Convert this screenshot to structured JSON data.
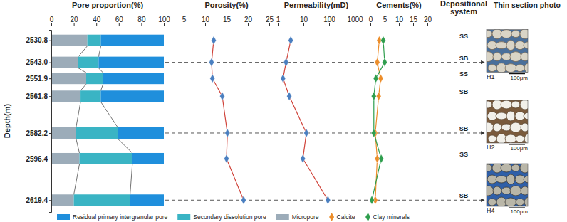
{
  "chart_data": [
    {
      "type": "bar",
      "orientation": "horizontal",
      "stacked": true,
      "title": "Pore proportion(%)",
      "ylabel": "Depth(m)",
      "y": [
        2530.8,
        2543.0,
        2551.9,
        2561.8,
        2582.2,
        2596.4,
        2619.4
      ],
      "ylim": [
        2525,
        2626
      ],
      "yticks": [
        2530.8,
        {
          "value": 2543.0,
          "label": "2543.0"
        },
        2551.9,
        2561.8,
        2582.2,
        2596.4,
        2619.4
      ],
      "xlim": [
        0,
        100
      ],
      "xticks": [
        0,
        20,
        40,
        60,
        80,
        100
      ],
      "legend": "bottom",
      "series": [
        {
          "name": "Residual primary intergranular pore",
          "color": "#1f8fdc",
          "values": [
            56,
            58,
            54,
            56,
            41,
            28,
            30
          ]
        },
        {
          "name": "Secondary dissolution pore",
          "color": "#3ab4c4",
          "values": [
            12,
            18,
            15,
            18,
            37,
            47,
            50
          ]
        },
        {
          "name": "Micropore",
          "color": "#9cacb9",
          "values": [
            32,
            24,
            31,
            26,
            22,
            25,
            20
          ]
        }
      ]
    },
    {
      "type": "line",
      "title": "Porosity(%)",
      "y": [
        2530.8,
        2543.0,
        2551.9,
        2561.8,
        2582.2,
        2596.4,
        2619.4
      ],
      "values": [
        12,
        11.5,
        11.7,
        14,
        15.2,
        15,
        19
      ],
      "xlim": [
        5,
        25
      ],
      "xticks": [
        5,
        10,
        15,
        20,
        25
      ],
      "color": "#d0433a",
      "marker": "diamond",
      "tick_labels": "x"
    },
    {
      "type": "line",
      "title": "Permeability(mD)",
      "log": "x",
      "y": [
        2530.8,
        2543.0,
        2551.9,
        2561.8,
        2582.2,
        2596.4,
        2619.4
      ],
      "values": [
        3.2,
        2.1,
        1.6,
        2.8,
        13,
        9.5,
        90
      ],
      "xlim": [
        1,
        1000
      ],
      "xticks": [
        1,
        10,
        100,
        1000
      ],
      "color": "#d0433a",
      "marker": "diamond",
      "tick_labels": "x"
    },
    {
      "type": "line",
      "title": "Cements(%)",
      "y": [
        2530.8,
        2543.0,
        2551.9,
        2561.8,
        2582.2,
        2596.4,
        2619.4
      ],
      "xlim": [
        0,
        20
      ],
      "xticks": [
        0,
        5,
        10,
        15,
        20
      ],
      "tick_labels": "x",
      "legend": "bottom",
      "series": [
        {
          "name": "Calcite",
          "color": "#ec8d2a",
          "marker": "diamond",
          "values": [
            3.1,
            2.4,
            3.6,
            2.9,
            1.7,
            2.4,
            1.7
          ]
        },
        {
          "name": "Clay minerals",
          "color": "#2f9e4e",
          "marker": "diamond",
          "values": [
            4.5,
            5.0,
            1.9,
            1.2,
            1.2,
            3.8,
            0.5
          ]
        }
      ]
    }
  ],
  "depositional_system": {
    "title": "Depositional system",
    "y": [
      2530.8,
      2543.0,
      2551.9,
      2561.8,
      2582.2,
      2596.4,
      2619.4
    ],
    "labels": [
      "SS",
      "SB",
      "SS",
      "SB",
      "SB",
      "SS",
      "SB"
    ]
  },
  "thin_sections": {
    "title": "Thin section photo",
    "photos": [
      {
        "label": "H1",
        "depth": 2543.0,
        "scale": "100μm"
      },
      {
        "label": "H2",
        "depth": 2582.2,
        "scale": "100μm"
      },
      {
        "label": "H4",
        "depth": 2619.4,
        "scale": "100μm"
      }
    ]
  }
}
